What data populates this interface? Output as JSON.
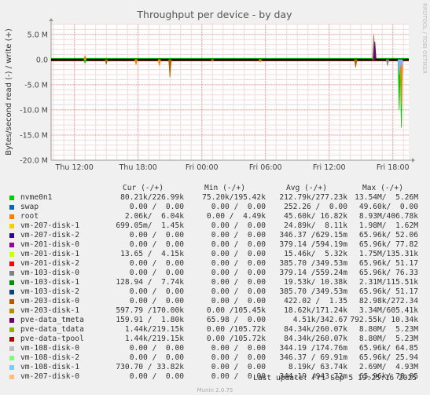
{
  "chart_data": {
    "type": "line",
    "title": "Throughput per device - by day",
    "ylabel": "Bytes/second read (-) / write (+)",
    "watermark": "RRDTOOL / TOBI OETIKER",
    "ylim": [
      -20000000,
      7000000
    ],
    "yticks": [
      5000000,
      0,
      -5000000,
      -10000000,
      -15000000,
      -20000000
    ],
    "ytick_labels": [
      "5.0 M",
      "0.0",
      "-5.0 M",
      "-10.0 M",
      "-15.0 M",
      "-20.0 M"
    ],
    "xtick_labels": [
      "Thu 12:00",
      "Thu 18:00",
      "Fri 00:00",
      "Fri 06:00",
      "Fri 12:00",
      "Fri 18:00"
    ],
    "xticks_hours": [
      0,
      6,
      12,
      18,
      24,
      30
    ],
    "xlim_hours": [
      -2.2,
      31.5
    ],
    "grid": true,
    "series": [
      {
        "name": "nvme0n1",
        "color": "#00cc00",
        "x": [
          1,
          5.8,
          8,
          13,
          17.5,
          30.6,
          30.8
        ],
        "y": [
          -700000,
          -700000,
          -500000,
          -200000,
          -500000,
          -10000000,
          -13500000
        ]
      },
      {
        "name": "root",
        "color": "#ff8000",
        "x": [
          1,
          5.8,
          8,
          13,
          17.5,
          28.2,
          30.8
        ],
        "y": [
          800000,
          -1000000,
          -1200000,
          -200000,
          -500000,
          5000000,
          -9000000
        ]
      },
      {
        "name": "vm-203-disk-1",
        "color": "#aa6600",
        "x": [
          3,
          9,
          26.5
        ],
        "y": [
          -900000,
          -3500000,
          -1500000
        ]
      },
      {
        "name": "pve-data_tpool",
        "color": "#888888",
        "x": [
          28.2,
          29.5
        ],
        "y": [
          4800000,
          -1200000
        ]
      },
      {
        "name": "vm-108-disk-1",
        "color": "#80b0ff",
        "x": [
          30.6,
          30.8
        ],
        "y": [
          -3000000,
          -1500000
        ]
      },
      {
        "name": "pve-data_tmeta",
        "color": "#660066",
        "x": [
          28.3
        ],
        "y": [
          3500000
        ]
      }
    ]
  },
  "legend": {
    "header": {
      "cur": "Cur (-/+)",
      "min": "Min (-/+)",
      "avg": "Avg (-/+)",
      "max": "Max (-/+)"
    },
    "rows": [
      {
        "name": "nvme0n1",
        "color": "#00cc00",
        "cur": "80.21k/226.99k",
        "min": "75.20k/195.42k",
        "avg": "212.79k/277.23k",
        "max": "13.54M/  5.26M"
      },
      {
        "name": "swap",
        "color": "#0066b3",
        "cur": "0.00 /  0.00",
        "min": "0.00 /  0.00",
        "avg": "252.26 /  0.00",
        "max": "49.60k/  0.00"
      },
      {
        "name": "root",
        "color": "#ff8000",
        "cur": "2.06k/  6.04k",
        "min": "0.00 /  4.49k",
        "avg": "45.60k/ 16.82k",
        "max": "8.93M/406.78k"
      },
      {
        "name": "vm-207-disk-1",
        "color": "#ffcc00",
        "cur": "699.05m/  1.45k",
        "min": "0.00 /  0.00",
        "avg": "24.89k/  8.11k",
        "max": "1.98M/  1.62M"
      },
      {
        "name": "vm-207-disk-2",
        "color": "#330099",
        "cur": "0.00 /  0.00",
        "min": "0.00 /  0.00",
        "avg": "346.37 /629.15m",
        "max": "65.96k/ 52.06"
      },
      {
        "name": "vm-201-disk-0",
        "color": "#990099",
        "cur": "0.00 /  0.00",
        "min": "0.00 /  0.00",
        "avg": "379.14 /594.19m",
        "max": "65.96k/ 77.82"
      },
      {
        "name": "vm-201-disk-1",
        "color": "#ccff00",
        "cur": "13.65 /  4.15k",
        "min": "0.00 /  0.00",
        "avg": "15.46k/  5.32k",
        "max": "1.75M/135.31k"
      },
      {
        "name": "vm-201-disk-2",
        "color": "#ff0000",
        "cur": "0.00 /  0.00",
        "min": "0.00 /  0.00",
        "avg": "385.70 /349.53m",
        "max": "65.96k/ 51.17"
      },
      {
        "name": "vm-103-disk-0",
        "color": "#808080",
        "cur": "0.00 /  0.00",
        "min": "0.00 /  0.00",
        "avg": "379.14 /559.24m",
        "max": "65.96k/ 76.33"
      },
      {
        "name": "vm-103-disk-1",
        "color": "#008f00",
        "cur": "128.94 /  7.74k",
        "min": "0.00 /  0.00",
        "avg": "19.53k/ 10.38k",
        "max": "2.31M/115.51k"
      },
      {
        "name": "vm-103-disk-2",
        "color": "#00487d",
        "cur": "0.00 /  0.00",
        "min": "0.00 /  0.00",
        "avg": "385.70 /349.53m",
        "max": "65.96k/ 51.17"
      },
      {
        "name": "vm-203-disk-0",
        "color": "#b35a00",
        "cur": "0.00 /  0.00",
        "min": "0.00 /  0.00",
        "avg": "422.02 /  1.35",
        "max": "82.98k/272.34"
      },
      {
        "name": "vm-203-disk-1",
        "color": "#b38f00",
        "cur": "597.79 /170.00k",
        "min": "0.00 /105.45k",
        "avg": "18.62k/171.24k",
        "max": "3.34M/605.41k"
      },
      {
        "name": "pve-data_tmeta",
        "color": "#6b006b",
        "cur": "159.91 /  1.80k",
        "min": "65.98 /  0.00",
        "avg": "4.51k/342.67",
        "max": "792.55k/ 10.34k"
      },
      {
        "name": "pve-data_tdata",
        "color": "#8fb300",
        "cur": "1.44k/219.15k",
        "min": "0.00 /105.72k",
        "avg": "84.34k/260.07k",
        "max": "8.80M/  5.23M"
      },
      {
        "name": "pve-data-tpool",
        "color": "#b30000",
        "cur": "1.44k/219.15k",
        "min": "0.00 /105.72k",
        "avg": "84.34k/260.07k",
        "max": "8.80M/  5.23M"
      },
      {
        "name": "vm-108-disk-0",
        "color": "#bebebe",
        "cur": "0.00 /  0.00",
        "min": "0.00 /  0.00",
        "avg": "344.19 /174.76m",
        "max": "65.96k/ 64.85"
      },
      {
        "name": "vm-108-disk-2",
        "color": "#80ff80",
        "cur": "0.00 /  0.00",
        "min": "0.00 /  0.00",
        "avg": "346.37 / 69.91m",
        "max": "65.96k/ 25.94"
      },
      {
        "name": "vm-108-disk-1",
        "color": "#80c9ff",
        "cur": "730.70 / 33.82k",
        "min": "0.00 /  0.00",
        "avg": "8.19k/ 63.74k",
        "max": "2.69M/  4.93M"
      },
      {
        "name": "vm-207-disk-0",
        "color": "#ffc080",
        "cur": "0.00 /  0.00",
        "min": "0.00 /  0.00",
        "avg": "344.19 /943.72m",
        "max": "65.96k/ 78.05"
      }
    ]
  },
  "footer": {
    "last_update": "Last update: Fri Sep  5 19:25:16 2025",
    "generator": "Munin 2.0.75"
  }
}
